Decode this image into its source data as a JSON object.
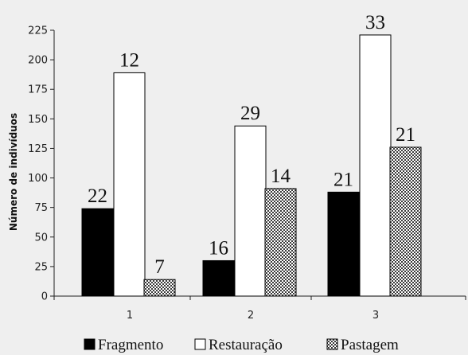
{
  "chart_data": {
    "type": "bar",
    "title": "",
    "xlabel": "",
    "ylabel": "Número de indivíduos",
    "ylim": [
      0,
      225
    ],
    "yticks": [
      0,
      25,
      50,
      75,
      100,
      125,
      150,
      175,
      200,
      225
    ],
    "categories": [
      "1",
      "2",
      "3"
    ],
    "grid": false,
    "legend_position": "bottom",
    "series": [
      {
        "name": "Fragmento",
        "fill": "solid",
        "color": "#000000",
        "values": [
          74,
          30,
          88
        ],
        "labels": [
          "22",
          "16",
          "21"
        ]
      },
      {
        "name": "Restauração",
        "fill": "hollow",
        "color": "#ffffff",
        "values": [
          189,
          144,
          221
        ],
        "labels": [
          "12",
          "29",
          "33"
        ]
      },
      {
        "name": "Pastagem",
        "fill": "crosshatch",
        "color": "#555555",
        "values": [
          14,
          91,
          126
        ],
        "labels": [
          "7",
          "14",
          "21"
        ]
      }
    ]
  }
}
